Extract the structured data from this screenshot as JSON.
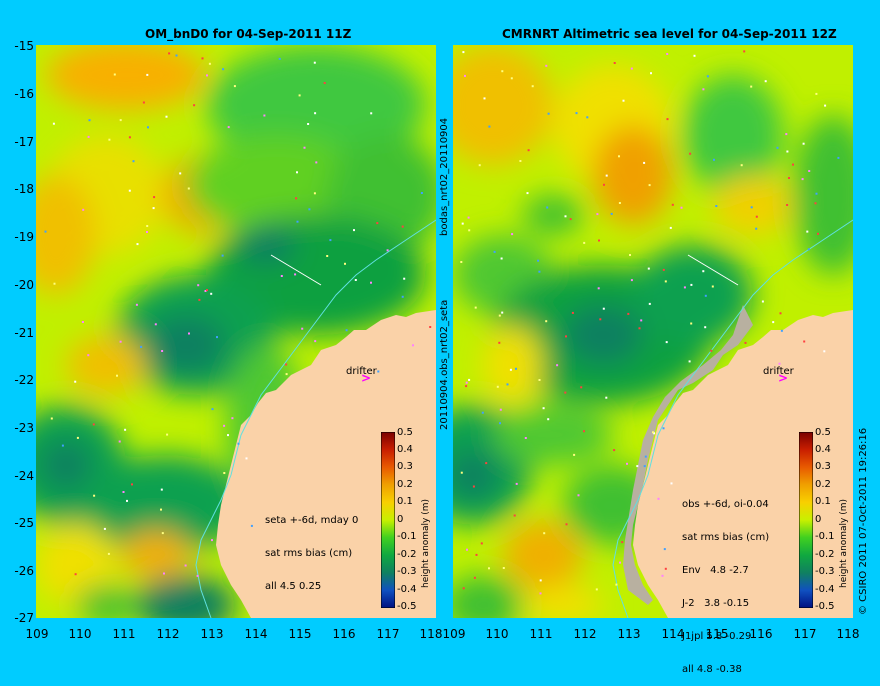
{
  "left_title": "OM_bnD0 for 04-Sep-2011 11Z",
  "right_title": "CMRNRT Altimetric sea level  for 04-Sep-2011 12Z",
  "y_ticks": [
    "-15",
    "-16",
    "-17",
    "-18",
    "-19",
    "-20",
    "-21",
    "-22",
    "-23",
    "-24",
    "-25",
    "-26",
    "-27"
  ],
  "x_ticks": [
    "109",
    "110",
    "111",
    "112",
    "113",
    "114",
    "115",
    "116",
    "117",
    "118"
  ],
  "colorbar": {
    "ticks": [
      "0.5",
      "0.4",
      "0.3",
      "0.2",
      "0.1",
      "0",
      "-0.1",
      "-0.2",
      "-0.3",
      "-0.4",
      "-0.5"
    ],
    "label": "height anomaly (m)",
    "colors": [
      "#7a0000",
      "#c81e00",
      "#e85a00",
      "#f0a000",
      "#f8d000",
      "#c8f000",
      "#40d020",
      "#10a840",
      "#108060",
      "#1050c0",
      "#001080"
    ]
  },
  "left_info": {
    "line1": "seta +-6d, mday 0",
    "line2": "sat rms bias (cm)",
    "line3": "all 4.5 0.25"
  },
  "right_info": {
    "line1": "obs +-6d, oi-0.04",
    "line2": "sat rms bias (cm)",
    "line3": "Env   4.8 -2.7",
    "line4": "J-2   3.8 -0.15",
    "line5": "J1jpl 5.8 -0.29",
    "line6": "all 4.8 -0.38"
  },
  "drifter_label": "drifter",
  "mid_vertical_labels": {
    "upper": "bodas_nrt02_20110904",
    "lower": "20110904.obs_nrt02_seta"
  },
  "credit": "© CSIRO 2011  07-Oct-2011 19:26:16",
  "land_color": "#fad2a8",
  "bg_color": "#00ccff"
}
